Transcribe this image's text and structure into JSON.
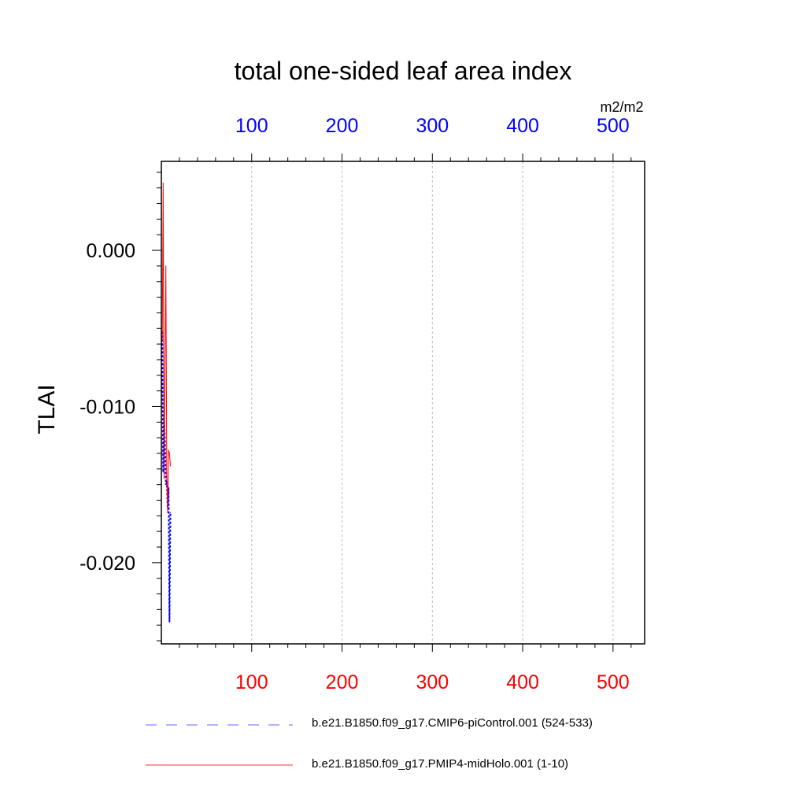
{
  "chart_data": {
    "type": "line",
    "title": "total one-sided leaf area index",
    "units": "m2/m2",
    "ylabel": "TLAI",
    "xlabel": "",
    "xlim": [
      0,
      535
    ],
    "ylim": [
      -0.0252,
      0.0057
    ],
    "x_ticks_bottom": [
      100,
      200,
      300,
      400,
      500
    ],
    "x_ticks_top": [
      100,
      200,
      300,
      400,
      500
    ],
    "y_ticks": [
      0.0,
      -0.01,
      -0.02
    ],
    "y_tick_labels": [
      "0.000",
      "-0.010",
      "-0.020"
    ],
    "grid": "vertical dashed at major x ticks",
    "legend_position": "bottom",
    "series": [
      {
        "name": "b.e21.B1850.f09_g17.CMIP6-piControl.001 (524-533)",
        "color": "#0000ff",
        "style": "dashed",
        "x": [
          1,
          2,
          3,
          4,
          5,
          6,
          7,
          8,
          9,
          10
        ],
        "y": [
          -0.0052,
          -0.0142,
          -0.0105,
          -0.0123,
          -0.015,
          -0.0148,
          -0.0165,
          -0.0152,
          -0.0238,
          -0.0168
        ]
      },
      {
        "name": "b.e21.B1850.f09_g17.PMIP4-midHolo.001 (1-10)",
        "color": "#ff0000",
        "style": "solid",
        "x": [
          1,
          2,
          3,
          4,
          5,
          6,
          7,
          8,
          9,
          10
        ],
        "y": [
          -0.0058,
          0.0043,
          -0.0146,
          -0.0082,
          -0.001,
          -0.0142,
          -0.0168,
          -0.0128,
          -0.013,
          -0.0138
        ]
      }
    ]
  }
}
